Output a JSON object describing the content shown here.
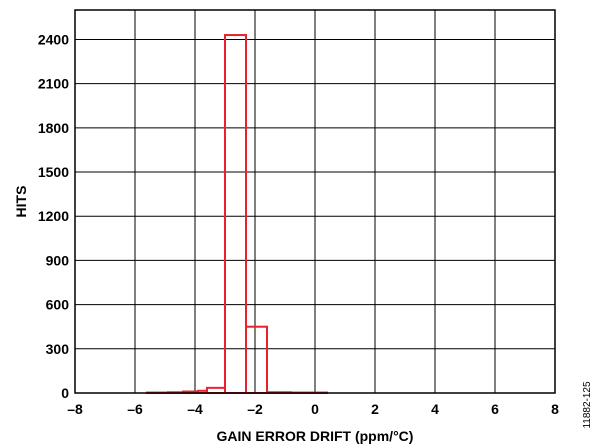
{
  "chart_data": {
    "type": "bar",
    "subtype": "histogram",
    "xlabel": "GAIN ERROR DRIFT (ppm/°C)",
    "ylabel": "HITS",
    "xlim": [
      -8,
      8
    ],
    "ylim": [
      0,
      2600
    ],
    "xticks": [
      -8,
      -6,
      -4,
      -2,
      0,
      2,
      4,
      6,
      8
    ],
    "xtick_labels": [
      "–8",
      "–6",
      "–4",
      "–2",
      "0",
      "2",
      "4",
      "6",
      "8"
    ],
    "yticks": [
      0,
      300,
      600,
      900,
      1200,
      1500,
      1800,
      2100,
      2400
    ],
    "ytick_labels": [
      "0",
      "300",
      "600",
      "900",
      "1200",
      "1500",
      "1800",
      "2100",
      "2400"
    ],
    "grid": true,
    "bar_color": "#e8212b",
    "bins": [
      {
        "x0": -5.6,
        "x1": -4.9,
        "value": 3
      },
      {
        "x0": -4.9,
        "x1": -4.4,
        "value": 5
      },
      {
        "x0": -4.4,
        "x1": -3.9,
        "value": 10
      },
      {
        "x0": -3.9,
        "x1": -3.6,
        "value": 15
      },
      {
        "x0": -3.6,
        "x1": -3.0,
        "value": 35
      },
      {
        "x0": -3.0,
        "x1": -2.3,
        "value": 2430
      },
      {
        "x0": -2.3,
        "x1": -1.6,
        "value": 450
      },
      {
        "x0": -1.6,
        "x1": -0.8,
        "value": 5
      },
      {
        "x0": -0.8,
        "x1": 0.4,
        "value": 3
      }
    ],
    "figure_code": "11882-125"
  }
}
